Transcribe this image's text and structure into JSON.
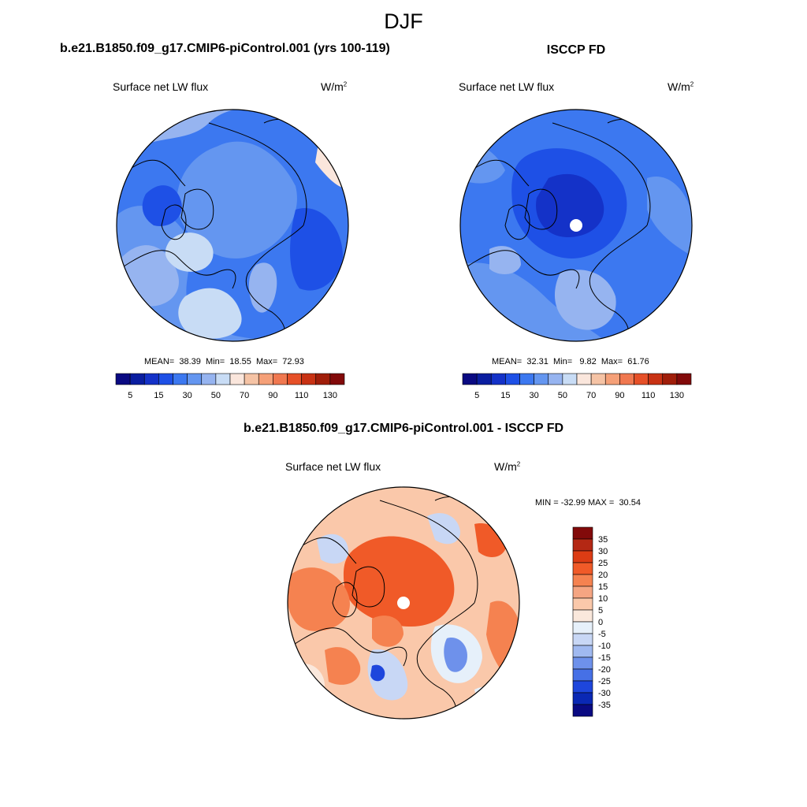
{
  "title": "DJF",
  "panels": [
    {
      "id": "model",
      "case_title": "b.e21.B1850.f09_g17.CMIP6-piControl.001 (yrs 100-119)",
      "variable": "Surface net LW flux",
      "units_base": "W/m",
      "units_exp": "2",
      "stats": {
        "mean_label": "MEAN=",
        "mean": "38.39",
        "min_label": "Min=",
        "min": "18.55",
        "max_label": "Max=",
        "max": "72.93"
      }
    },
    {
      "id": "obs",
      "case_title": "ISCCP FD",
      "variable": "Surface net LW flux",
      "units_base": "W/m",
      "units_exp": "2",
      "stats": {
        "mean_label": "MEAN=",
        "mean": "32.31",
        "min_label": "Min=",
        "min": "9.82",
        "max_label": "Max=",
        "max": "61.76"
      }
    },
    {
      "id": "diff",
      "case_title": "b.e21.B1850.f09_g17.CMIP6-piControl.001 - ISCCP FD",
      "variable": "Surface net LW flux",
      "units_base": "W/m",
      "units_exp": "2",
      "stats": {
        "min_label": "MIN =",
        "min": "-32.99",
        "max_label": "MAX =",
        "max": "30.54"
      }
    }
  ],
  "chart_data": {
    "type": "heatmap",
    "projection": "north polar stereographic",
    "season": "DJF",
    "colorbars": {
      "abs": {
        "orientation": "horizontal",
        "labels": [
          "5",
          "15",
          "30",
          "50",
          "70",
          "90",
          "110",
          "130"
        ],
        "colors": [
          "#0a0a82",
          "#0a1ea0",
          "#1432c8",
          "#1e50e6",
          "#3c78f0",
          "#6496f0",
          "#96b4f0",
          "#c8dcf5",
          "#fae6dc",
          "#f5c3a5",
          "#f5a078",
          "#f07850",
          "#e65028",
          "#c83214",
          "#a01e0a",
          "#820a0a"
        ]
      },
      "diff": {
        "orientation": "vertical",
        "labels": [
          "35",
          "30",
          "25",
          "20",
          "15",
          "10",
          "5",
          "0",
          "-5",
          "-10",
          "-15",
          "-20",
          "-25",
          "-30",
          "-35"
        ],
        "colors": [
          "#820a0a",
          "#b42814",
          "#dc3c14",
          "#f05a28",
          "#f58250",
          "#f5a582",
          "#fac8aa",
          "#fae8dc",
          "#e6f0fa",
          "#c8d7f5",
          "#a0b9f0",
          "#6e91eb",
          "#4670e6",
          "#1e46dc",
          "#0a28b4",
          "#0a0a82"
        ]
      }
    }
  }
}
